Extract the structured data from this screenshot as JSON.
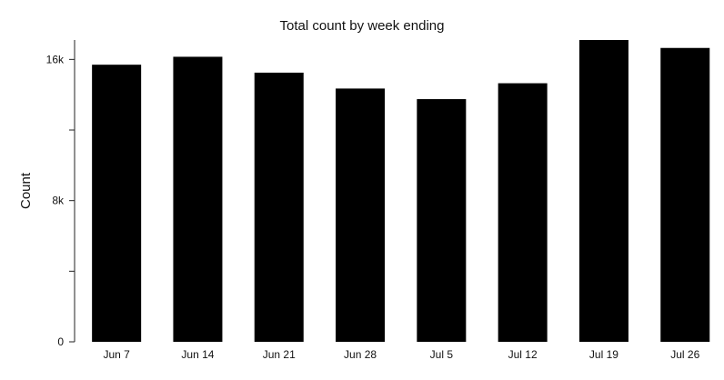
{
  "chart_data": {
    "type": "bar",
    "title": "Total count by week ending",
    "xlabel": "",
    "ylabel": "Count",
    "categories": [
      "Jun 7",
      "Jun 14",
      "Jun 21",
      "Jun 28",
      "Jul 5",
      "Jul 12",
      "Jul 19",
      "Jul 26"
    ],
    "values": [
      15700,
      16150,
      15250,
      14350,
      13750,
      14650,
      17100,
      16650
    ],
    "ylim": [
      0,
      17100
    ],
    "y_ticks": [
      0,
      4000,
      8000,
      12000,
      16000
    ],
    "y_tick_labels": [
      "0",
      "8k",
      "16k"
    ],
    "grid": false,
    "bar_color": "#000000"
  }
}
